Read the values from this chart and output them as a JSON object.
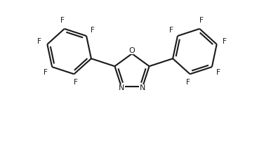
{
  "bg_color": "#ffffff",
  "line_color": "#1a1a1a",
  "line_width": 1.5,
  "font_size": 7.5,
  "fig_width": 3.76,
  "fig_height": 2.16,
  "dpi": 100,
  "xlim": [
    -1.6,
    1.6
  ],
  "ylim": [
    -0.95,
    0.85
  ],
  "ox_r": 0.22,
  "ph_r": 0.28,
  "dbo": 0.032
}
